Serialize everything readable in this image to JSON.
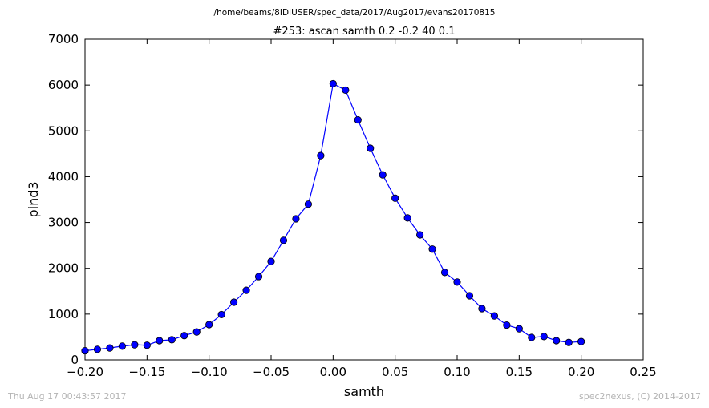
{
  "suptitle": "/home/beams/8IDIUSER/spec_data/2017/Aug2017/evans20170815",
  "footer": {
    "left": "Thu Aug 17 00:43:57 2017",
    "right": "spec2nexus, (C) 2014-2017"
  },
  "colors": {
    "series": "#0000ff",
    "axes": "#000000",
    "footer": "#b3b3b3"
  },
  "chart_data": {
    "type": "line",
    "title": "#253: ascan  samth 0.2 -0.2  40 0.1",
    "xlabel": "samth",
    "ylabel": "pind3",
    "xlim": [
      -0.2,
      0.25
    ],
    "ylim": [
      0,
      7000
    ],
    "xticks": [
      -0.2,
      -0.15,
      -0.1,
      -0.05,
      0.0,
      0.05,
      0.1,
      0.15,
      0.2,
      0.25
    ],
    "xtick_labels": [
      "−0.20",
      "−0.15",
      "−0.10",
      "−0.05",
      "0.00",
      "0.05",
      "0.10",
      "0.15",
      "0.20",
      "0.25"
    ],
    "yticks": [
      0,
      1000,
      2000,
      3000,
      4000,
      5000,
      6000,
      7000
    ],
    "ytick_labels": [
      "0",
      "1000",
      "2000",
      "3000",
      "4000",
      "5000",
      "6000",
      "7000"
    ],
    "grid": false,
    "marker": "circle",
    "x": [
      -0.2,
      -0.19,
      -0.18,
      -0.17,
      -0.16,
      -0.15,
      -0.14,
      -0.13,
      -0.12,
      -0.11,
      -0.1,
      -0.09,
      -0.08,
      -0.07,
      -0.06,
      -0.05,
      -0.04,
      -0.03,
      -0.02,
      -0.01,
      0.0,
      0.01,
      0.02,
      0.03,
      0.04,
      0.05,
      0.06,
      0.07,
      0.08,
      0.09,
      0.1,
      0.11,
      0.12,
      0.13,
      0.14,
      0.15,
      0.16,
      0.17,
      0.18,
      0.19,
      0.2
    ],
    "y": [
      200,
      230,
      260,
      300,
      330,
      320,
      420,
      440,
      530,
      610,
      770,
      990,
      1260,
      1520,
      1820,
      2150,
      2610,
      3080,
      3400,
      4460,
      6030,
      5890,
      5240,
      4620,
      4040,
      3530,
      3100,
      2730,
      2420,
      1910,
      1700,
      1400,
      1120,
      960,
      760,
      680,
      490,
      510,
      420,
      380,
      400
    ]
  }
}
